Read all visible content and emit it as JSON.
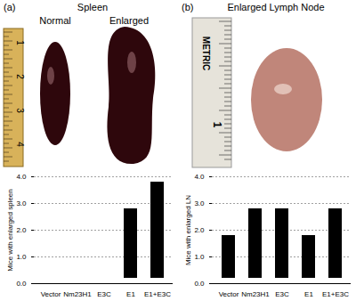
{
  "figure": {
    "panels": [
      {
        "label": "(a)",
        "title": "Spleen",
        "photo_labels": [
          "Normal",
          "Enlarged"
        ],
        "ruler_labels": [
          "1",
          "2",
          "3",
          "4"
        ]
      },
      {
        "label": "(b)",
        "title": "Enlarged Lymph Node",
        "ruler_labels": [
          "METRIC",
          "1"
        ]
      }
    ]
  },
  "chart_data": [
    {
      "type": "bar",
      "categories": [
        "Vector",
        "Nm23H1",
        "E3C",
        "E1",
        "E1+E3C"
      ],
      "values": [
        0,
        0,
        0,
        3,
        4
      ],
      "y_label": "Mice with enlarged spleen",
      "ylim": [
        0,
        4
      ],
      "yticks": [
        0,
        1,
        2,
        3,
        4
      ],
      "grid": true,
      "color": "#000000"
    },
    {
      "type": "bar",
      "categories": [
        "Vector",
        "Nm23H1",
        "E3C",
        "E1",
        "E1+E3C"
      ],
      "values": [
        2,
        3,
        3,
        2,
        3
      ],
      "y_label": "Mice with enlarged LN",
      "ylim": [
        0,
        4
      ],
      "yticks": [
        0,
        1,
        2,
        3,
        4
      ],
      "grid": true,
      "color": "#000000"
    }
  ]
}
